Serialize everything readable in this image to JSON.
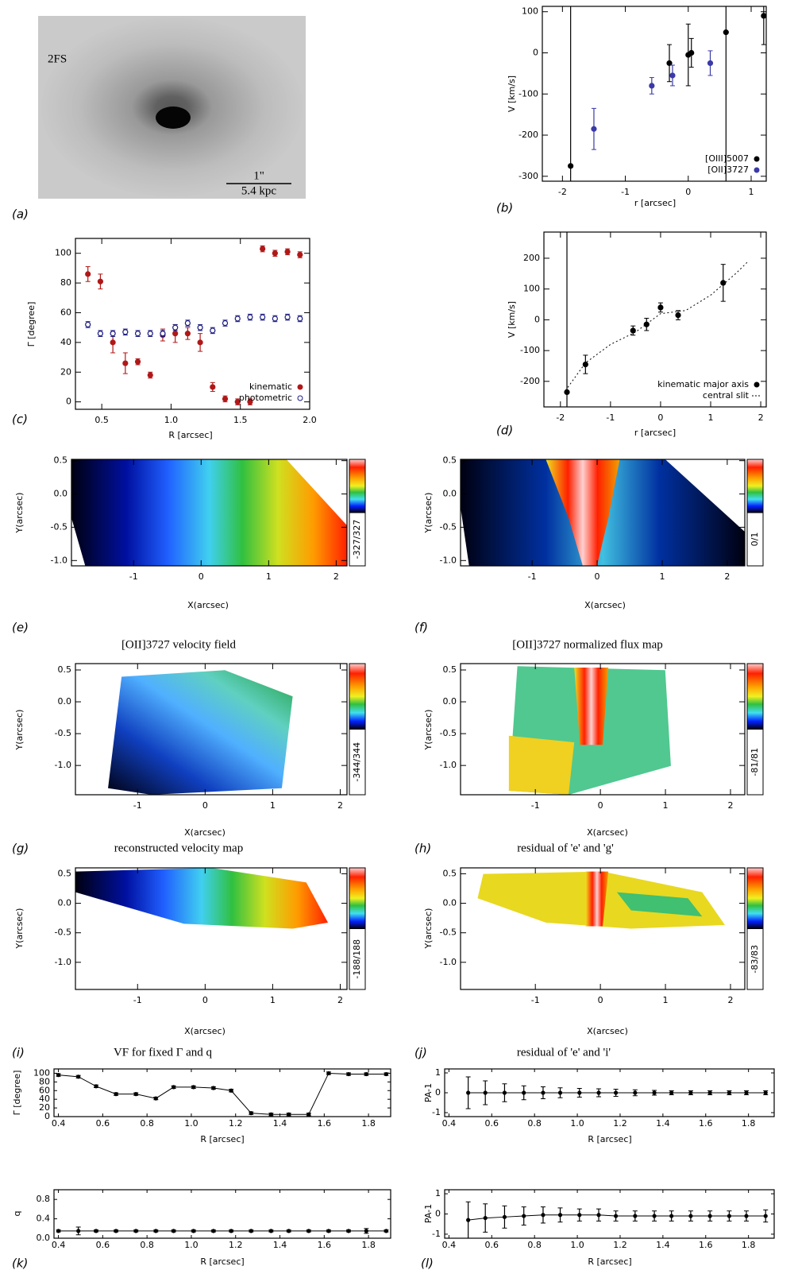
{
  "chart_data": [
    {
      "type": "image",
      "panel": "(a)",
      "annotations": [
        "2FS",
        "1\"",
        "5.4 kpc"
      ]
    },
    {
      "type": "scatter",
      "panel": "(b)",
      "xlabel": "r [arcsec]",
      "ylabel": "V [km/s]",
      "xlim": [
        -2.32,
        1.24
      ],
      "ylim": [
        -312,
        113
      ],
      "xticks": [
        -2,
        -1,
        0,
        1
      ],
      "yticks": [
        -300,
        -200,
        -100,
        0,
        100
      ],
      "legend": "lower right",
      "series": [
        {
          "name": "[OIII]5007",
          "color": "#000000",
          "mode": "points",
          "x": [
            -1.87,
            -0.3,
            0.0,
            0.05,
            0.6,
            1.2
          ],
          "values": [
            -275,
            -25,
            -5,
            0,
            50,
            90
          ],
          "errors": [
            500,
            45,
            75,
            35,
            400,
            70
          ]
        },
        {
          "name": "[OII]3727",
          "color": "#3a3aa8",
          "mode": "points",
          "x": [
            -1.5,
            -0.58,
            -0.25,
            0.35
          ],
          "values": [
            -185,
            -80,
            -55,
            -25
          ],
          "errors": [
            50,
            20,
            25,
            30
          ]
        }
      ]
    },
    {
      "type": "scatter",
      "panel": "(c)",
      "xlabel": "R [arcsec]",
      "ylabel": "Γ [degree]",
      "xlim": [
        0.31,
        2.0
      ],
      "ylim": [
        -5,
        110
      ],
      "xticks": [
        0.5,
        {
          "value": 1,
          "label": "1.0"
        },
        1.5,
        {
          "value": 2,
          "label": "2.0"
        }
      ],
      "yticks": [
        0,
        20,
        40,
        60,
        80,
        100
      ],
      "legend": "lower right",
      "series": [
        {
          "name": "kinematic",
          "color": "#b01818",
          "mode": "points",
          "x": [
            0.4,
            0.49,
            0.58,
            0.67,
            0.76,
            0.85,
            0.94,
            1.03,
            1.12,
            1.21,
            1.3,
            1.39,
            1.48,
            1.57,
            1.66,
            1.75,
            1.84,
            1.93
          ],
          "values": [
            86,
            81,
            40,
            26,
            27,
            18,
            45,
            46,
            46,
            40,
            10,
            2,
            0,
            0,
            103,
            100,
            101,
            99
          ],
          "errors": [
            5,
            5,
            7,
            7,
            2,
            2,
            4,
            6,
            4,
            6,
            3,
            2,
            2,
            2,
            2,
            2,
            2,
            2
          ]
        },
        {
          "name": "photometric",
          "color": "#1c1c80",
          "mode": "open",
          "x": [
            0.4,
            0.49,
            0.58,
            0.67,
            0.76,
            0.85,
            0.94,
            1.03,
            1.12,
            1.21,
            1.3,
            1.39,
            1.48,
            1.57,
            1.66,
            1.75,
            1.84,
            1.93
          ],
          "values": [
            52,
            46,
            46,
            47,
            46,
            46,
            46,
            50,
            53,
            50,
            48,
            53,
            56,
            57,
            57,
            56,
            57,
            56
          ],
          "errors": [
            2,
            2,
            2,
            2,
            2,
            2,
            2,
            2,
            2,
            2,
            2,
            2,
            2,
            2,
            2,
            2,
            2,
            2
          ]
        }
      ]
    },
    {
      "type": "scatter",
      "panel": "(d)",
      "xlabel": "r [arcsec]",
      "ylabel": "V [km/s]",
      "xlim": [
        -2.33,
        2.11
      ],
      "ylim": [
        -283,
        285
      ],
      "xticks": [
        -2,
        -1,
        0,
        1,
        2
      ],
      "yticks": [
        -200,
        -100,
        0,
        100,
        200
      ],
      "legend": "lower right",
      "series": [
        {
          "name": "kinematic major axis",
          "color": "#000000",
          "mode": "points",
          "x": [
            -1.87,
            -1.5,
            -0.55,
            -0.28,
            0,
            0.35,
            1.25
          ],
          "values": [
            -235,
            -145,
            -35,
            -15,
            40,
            15,
            120
          ],
          "errors": [
            600,
            30,
            15,
            20,
            15,
            15,
            60
          ]
        },
        {
          "name": "central slit",
          "color": "#000000",
          "mode": "dotted",
          "x": [
            -1.9,
            -1.5,
            -1,
            -0.5,
            0,
            0.5,
            1,
            1.5,
            1.75
          ],
          "values": [
            -230,
            -140,
            -80,
            -40,
            20,
            30,
            80,
            150,
            190
          ]
        }
      ]
    },
    {
      "type": "map",
      "panel": "(e)",
      "xlabel": "X(arcsec)",
      "ylabel": "Y(arcsec)",
      "colorbar_label": "-327/327",
      "xlim": [
        -1.92,
        2.16
      ],
      "ylim": [
        -1.08,
        0.52
      ],
      "xticks": [
        -1,
        0,
        1,
        2
      ],
      "yticks": [
        0.5,
        {
          "value": 0,
          "label": "0.0"
        },
        -0.5,
        {
          "value": -1,
          "label": "-1.0"
        }
      ]
    },
    {
      "type": "map",
      "panel": "(f)",
      "xlabel": "X(arcsec)",
      "ylabel": "Y(arcsec)",
      "colorbar_label": "0/1",
      "xlim": [
        -2.1,
        2.27
      ],
      "ylim": [
        -1.08,
        0.52
      ],
      "xticks": [
        -1,
        0,
        1,
        2
      ],
      "yticks": [
        0.5,
        {
          "value": 0,
          "label": "0.0"
        },
        -0.5,
        {
          "value": -1,
          "label": "-1.0"
        }
      ]
    },
    {
      "type": "map",
      "panel": "(g)",
      "title": "[OII]3727 velocity field",
      "xlabel": "X(arcsec)",
      "ylabel": "Y(arcsec)",
      "colorbar_label": "-344/344",
      "xlim": [
        -1.92,
        2.1
      ],
      "ylim": [
        -1.46,
        0.6
      ],
      "xticks": [
        -1,
        0,
        1,
        2
      ],
      "yticks": [
        0.5,
        {
          "value": 0,
          "label": "0.0"
        },
        -0.5,
        {
          "value": -1,
          "label": "-1.0"
        }
      ]
    },
    {
      "type": "map",
      "panel": "(h)",
      "title": "[OII]3727 normalized flux map",
      "xlabel": "X(arcsec)",
      "ylabel": "Y(arcsec)",
      "colorbar_label": "-81/81",
      "xlim": [
        -2.15,
        2.22
      ],
      "ylim": [
        -1.46,
        0.6
      ],
      "xticks": [
        -1,
        0,
        1,
        2
      ],
      "yticks": [
        0.5,
        {
          "value": 0,
          "label": "0.0"
        },
        -0.5,
        {
          "value": -1,
          "label": "-1.0"
        }
      ]
    },
    {
      "type": "map",
      "panel": "(i)",
      "title": "reconstructed velocity map",
      "xlabel": "X(arcsec)",
      "ylabel": "Y(arcsec)",
      "colorbar_label": "-188/188",
      "xlim": [
        -1.92,
        2.1
      ],
      "ylim": [
        -1.46,
        0.6
      ],
      "xticks": [
        -1,
        0,
        1,
        2
      ],
      "yticks": [
        0.5,
        {
          "value": 0,
          "label": "0.0"
        },
        -0.5,
        {
          "value": -1,
          "label": "-1.0"
        }
      ]
    },
    {
      "type": "map",
      "panel": "(j)",
      "title": "residual of 'e' and 'g'",
      "xlabel": "X(arcsec)",
      "ylabel": "Y(arcsec)",
      "colorbar_label": "-83/83",
      "xlim": [
        -2.15,
        2.22
      ],
      "ylim": [
        -1.46,
        0.6
      ],
      "xticks": [
        -1,
        0,
        1,
        2
      ],
      "yticks": [
        0.5,
        {
          "value": 0,
          "label": "0.0"
        },
        -0.5,
        {
          "value": -1,
          "label": "-1.0"
        }
      ]
    },
    {
      "type": "scatter",
      "title": "VF for fixed Γ and q",
      "xlabel": "R [arcsec]",
      "ylabel": "Γ [degree]",
      "xlim": [
        0.38,
        1.9
      ],
      "ylim": [
        0,
        110
      ],
      "xticks": [
        0.4,
        0.6,
        0.8,
        {
          "value": 1,
          "label": "1.0"
        },
        1.2,
        1.4,
        1.6,
        1.8
      ],
      "yticks": [
        0,
        20,
        40,
        60,
        80,
        100
      ],
      "series": [
        {
          "name": "Γ",
          "color": "#000000",
          "mode": "line",
          "x": [
            0.4,
            0.49,
            0.57,
            0.66,
            0.75,
            0.84,
            0.92,
            1.01,
            1.1,
            1.18,
            1.27,
            1.36,
            1.44,
            1.53,
            1.62,
            1.71,
            1.79,
            1.88
          ],
          "values": [
            96,
            92,
            70,
            52,
            52,
            42,
            68,
            68,
            66,
            60,
            8,
            5,
            5,
            5,
            100,
            98,
            98,
            98
          ],
          "errors": [
            3,
            3,
            3,
            3,
            3,
            3,
            3,
            3,
            3,
            3,
            3,
            3,
            3,
            3,
            3,
            3,
            3,
            3
          ]
        }
      ]
    },
    {
      "type": "scatter",
      "panel": "(k)",
      "xlabel": "R [arcsec]",
      "ylabel": "q",
      "xlim": [
        0.38,
        1.9
      ],
      "ylim": [
        0,
        1
      ],
      "xticks": [
        0.4,
        0.6,
        0.8,
        {
          "value": 1,
          "label": "1.0"
        },
        1.2,
        1.4,
        1.6,
        1.8
      ],
      "yticks": [
        {
          "value": 0,
          "label": "0.0"
        },
        0.4,
        0.8
      ],
      "series": [
        {
          "name": "q",
          "color": "#000000",
          "mode": "line",
          "x": [
            0.4,
            0.49,
            0.57,
            0.66,
            0.75,
            0.84,
            0.92,
            1.01,
            1.1,
            1.18,
            1.27,
            1.36,
            1.44,
            1.53,
            1.62,
            1.71,
            1.79,
            1.88
          ],
          "values": [
            0.15,
            0.15,
            0.15,
            0.15,
            0.15,
            0.15,
            0.15,
            0.15,
            0.15,
            0.15,
            0.15,
            0.15,
            0.15,
            0.15,
            0.15,
            0.15,
            0.15,
            0.15
          ],
          "errors": [
            0.02,
            0.08,
            0.02,
            0.02,
            0.02,
            0.02,
            0.02,
            0.02,
            0.02,
            0.02,
            0.02,
            0.02,
            0.02,
            0.02,
            0.02,
            0.02,
            0.05,
            0.02
          ]
        }
      ]
    },
    {
      "type": "scatter",
      "title": "residual of 'e' and 'i'",
      "xlabel": "R [arcsec]",
      "ylabel": "PA-1",
      "xlim": [
        0.38,
        1.92
      ],
      "ylim": [
        -1.2,
        1.2
      ],
      "xticks": [
        0.4,
        0.6,
        0.8,
        {
          "value": 1,
          "label": "1.0"
        },
        1.2,
        1.4,
        1.6,
        1.8
      ],
      "yticks": [
        -1,
        0,
        1
      ],
      "series": [
        {
          "name": "PA-1",
          "color": "#000000",
          "mode": "line",
          "x": [
            0.49,
            0.57,
            0.66,
            0.75,
            0.84,
            0.92,
            1.01,
            1.1,
            1.18,
            1.27,
            1.36,
            1.44,
            1.53,
            1.62,
            1.71,
            1.79,
            1.88
          ],
          "values": [
            0,
            0,
            0,
            0,
            0,
            0,
            0,
            0,
            0,
            0,
            0,
            0,
            0,
            0,
            0,
            0,
            0
          ],
          "errors": [
            0.8,
            0.6,
            0.45,
            0.35,
            0.3,
            0.25,
            0.22,
            0.2,
            0.18,
            0.15,
            0.12,
            0.1,
            0.1,
            0.1,
            0.1,
            0.1,
            0.1
          ]
        }
      ]
    },
    {
      "type": "scatter",
      "panel": "(l)",
      "xlabel": "R [arcsec]",
      "ylabel": "PA-1",
      "xlim": [
        0.38,
        1.92
      ],
      "ylim": [
        -1.2,
        1.2
      ],
      "xticks": [
        0.4,
        0.6,
        0.8,
        {
          "value": 1,
          "label": "1.0"
        },
        1.2,
        1.4,
        1.6,
        1.8
      ],
      "yticks": [
        -1,
        0,
        1
      ],
      "series": [
        {
          "name": "PA-1",
          "color": "#000000",
          "mode": "line",
          "x": [
            0.49,
            0.57,
            0.66,
            0.75,
            0.84,
            0.92,
            1.01,
            1.1,
            1.18,
            1.27,
            1.36,
            1.44,
            1.53,
            1.62,
            1.71,
            1.79,
            1.88
          ],
          "values": [
            -0.3,
            -0.2,
            -0.15,
            -0.1,
            -0.05,
            -0.05,
            -0.05,
            -0.05,
            -0.1,
            -0.1,
            -0.1,
            -0.1,
            -0.1,
            -0.1,
            -0.1,
            -0.1,
            -0.1
          ],
          "errors": [
            0.9,
            0.7,
            0.55,
            0.45,
            0.4,
            0.35,
            0.3,
            0.3,
            0.25,
            0.25,
            0.25,
            0.25,
            0.25,
            0.25,
            0.25,
            0.25,
            0.3
          ]
        }
      ]
    }
  ]
}
